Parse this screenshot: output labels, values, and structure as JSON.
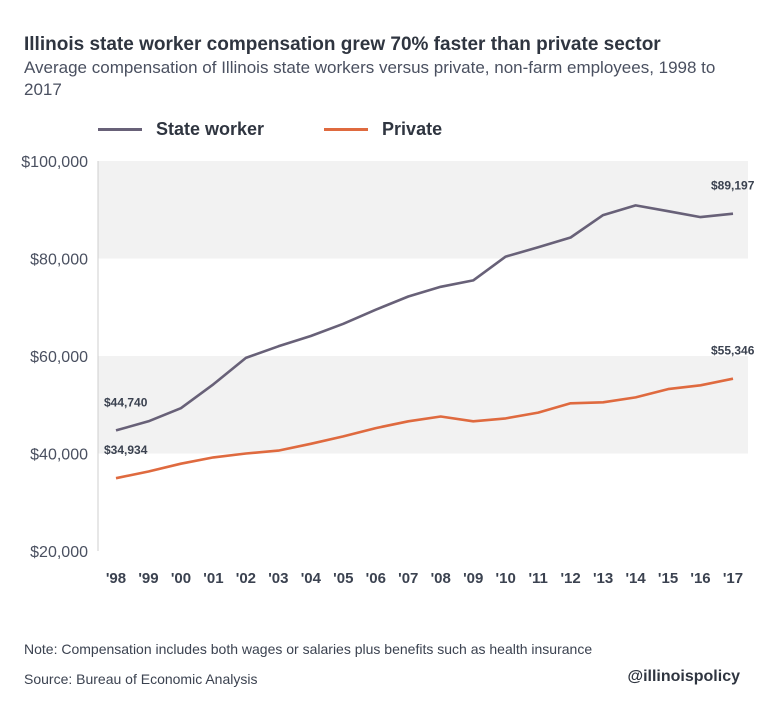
{
  "title": "Illinois state worker compensation grew 70% faster than private sector",
  "subtitle": "Average compensation of Illinois state workers versus private, non-farm employees, 1998 to 2017",
  "note": "Note: Compensation includes both wages or salaries plus benefits such as health insurance",
  "source": "Source: Bureau of Economic Analysis",
  "handle": "@illinoispolicy",
  "chart_data": {
    "type": "line",
    "title": "Illinois state worker compensation grew 70% faster than private sector",
    "subtitle": "Average compensation of Illinois state workers versus private, non-farm employees, 1998 to 2017",
    "xlabel": "",
    "ylabel": "",
    "ylim": [
      20000,
      100000
    ],
    "yticks": [
      20000,
      40000,
      60000,
      80000,
      100000
    ],
    "ytick_labels": [
      "$20,000",
      "$40,000",
      "$60,000",
      "$80,000",
      "$100,000"
    ],
    "shaded_bands": [
      [
        40000,
        60000
      ],
      [
        80000,
        100000
      ]
    ],
    "band_color": "#f2f2f2",
    "legend_position": "top-left",
    "categories": [
      "'98",
      "'99",
      "'00",
      "'01",
      "'02",
      "'03",
      "'04",
      "'05",
      "'06",
      "'07",
      "'08",
      "'09",
      "'10",
      "'11",
      "'12",
      "'13",
      "'14",
      "'15",
      "'16",
      "'17"
    ],
    "series": [
      {
        "name": "State worker",
        "color": "#686178",
        "values": [
          44740,
          46600,
          49300,
          54200,
          59600,
          62000,
          64100,
          66600,
          69500,
          72200,
          74200,
          75500,
          80400,
          82300,
          84300,
          88900,
          90900,
          89700,
          88500,
          89197
        ],
        "labels": {
          "0": "$44,740",
          "19": "$89,197"
        }
      },
      {
        "name": "Private",
        "color": "#df6a3f",
        "values": [
          34934,
          36300,
          37900,
          39200,
          40000,
          40600,
          42000,
          43500,
          45200,
          46600,
          47600,
          46600,
          47200,
          48400,
          50300,
          50500,
          51500,
          53200,
          54000,
          55346
        ],
        "labels": {
          "0": "$34,934",
          "19": "$55,346"
        }
      }
    ]
  }
}
